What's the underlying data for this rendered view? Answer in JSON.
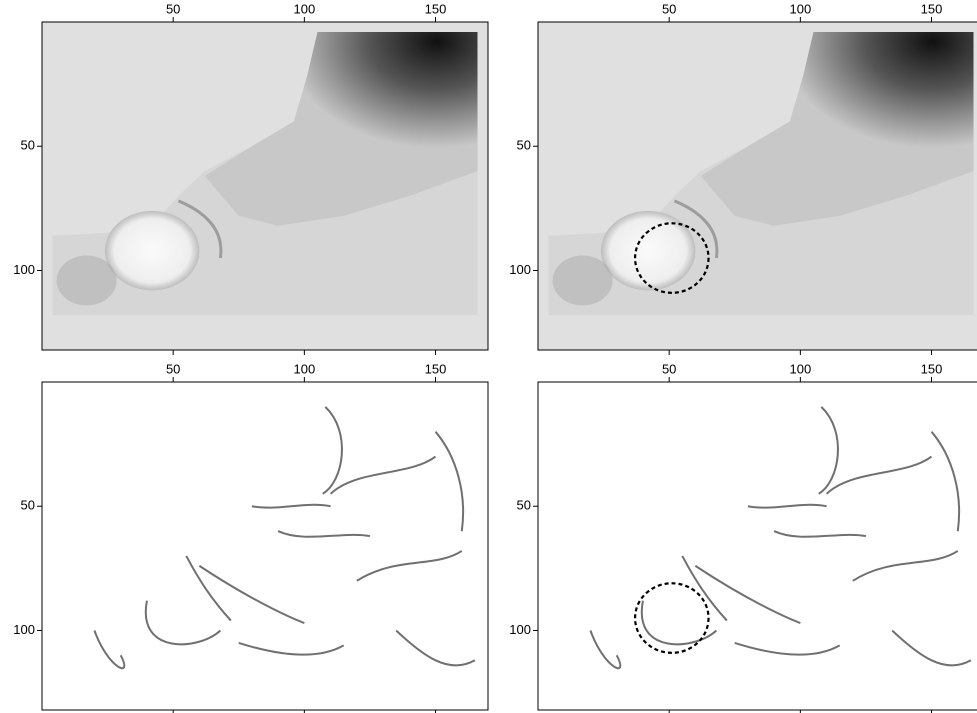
{
  "chart_data": [
    {
      "type": "image",
      "xlim": [
        0,
        170
      ],
      "ylim": [
        0,
        132
      ],
      "xticks": [
        50,
        100,
        150
      ],
      "yticks": [
        50,
        100
      ]
    },
    {
      "type": "image",
      "xlim": [
        0,
        170
      ],
      "ylim": [
        0,
        132
      ],
      "xticks": [
        50,
        100,
        150
      ],
      "yticks": [
        50,
        100
      ],
      "circle": {
        "cx": 51,
        "cy": 95,
        "r": 14
      }
    },
    {
      "type": "image",
      "xlim": [
        0,
        170
      ],
      "ylim": [
        0,
        132
      ],
      "xticks": [
        50,
        100,
        150
      ],
      "yticks": [
        50,
        100
      ]
    },
    {
      "type": "image",
      "xlim": [
        0,
        170
      ],
      "ylim": [
        0,
        132
      ],
      "xticks": [
        50,
        100,
        150
      ],
      "yticks": [
        50,
        100
      ],
      "circle": {
        "cx": 51,
        "cy": 95,
        "r": 14
      }
    }
  ]
}
